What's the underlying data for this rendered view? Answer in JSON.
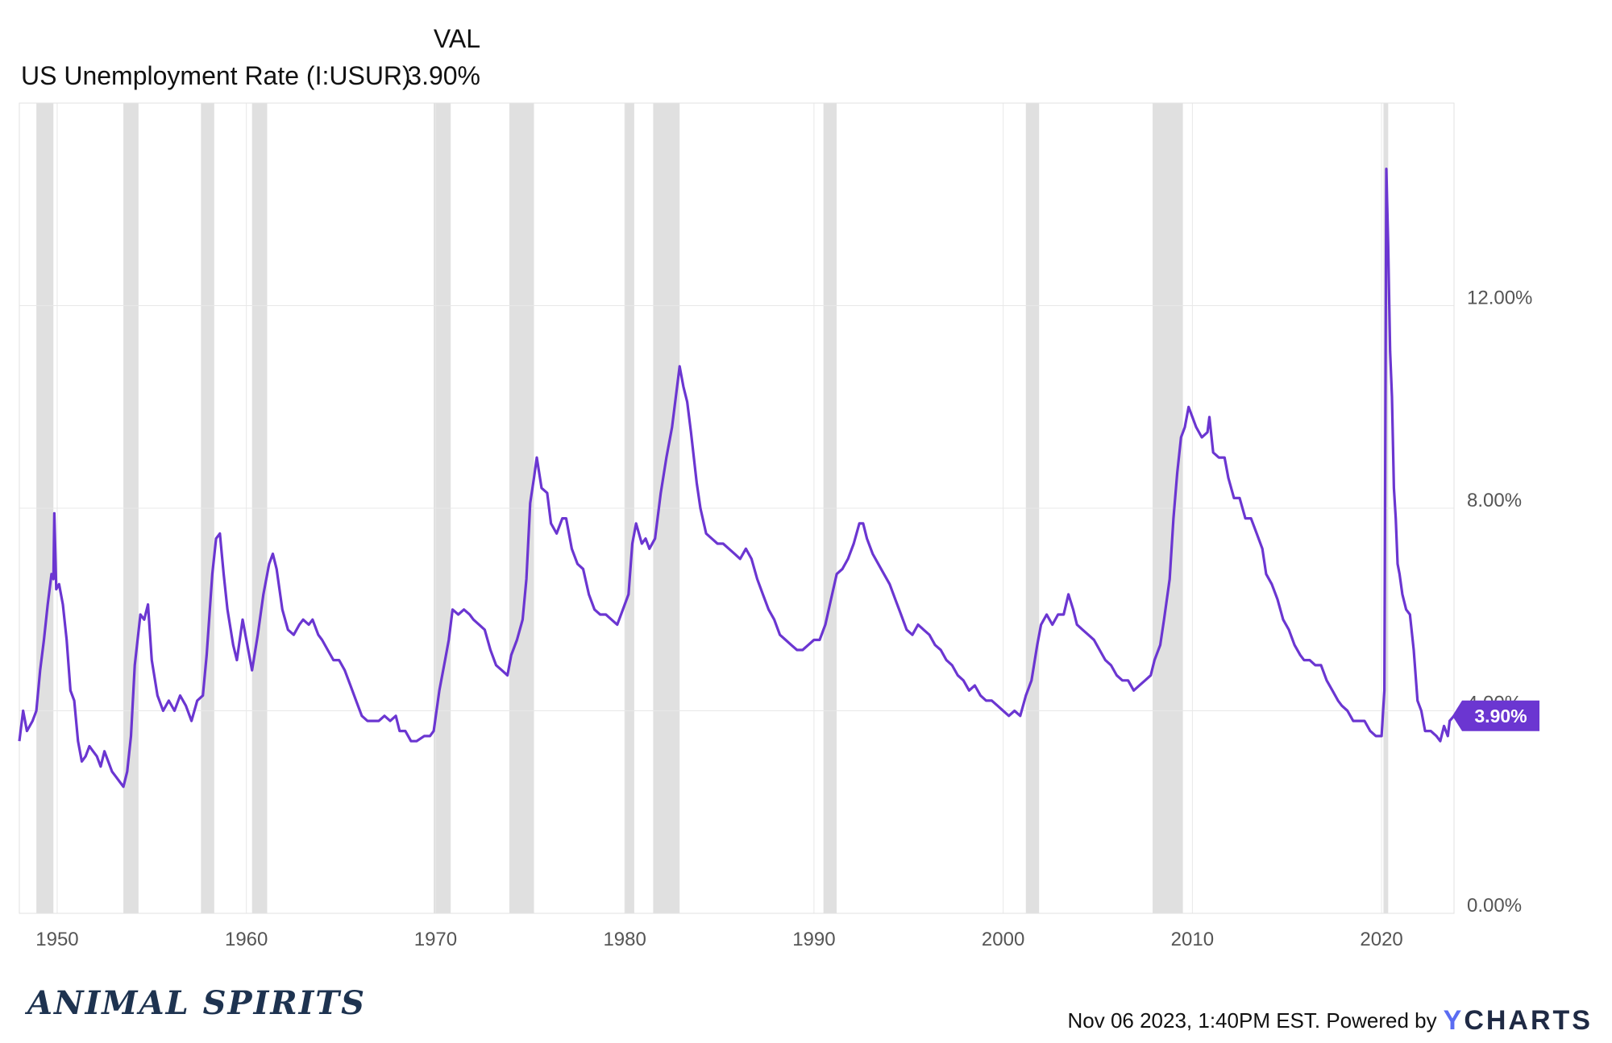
{
  "legend": {
    "header": "VAL",
    "series_name": "US Unemployment Rate (I:USUR)",
    "series_value": "3.90%"
  },
  "footer": {
    "logo_text": "ANIMAL SPIRITS",
    "timestamp": "Nov 06 2023, 1:40PM EST. Powered by",
    "brand_y": "Y",
    "brand_rest": "CHARTS"
  },
  "colors": {
    "line": "#6b36d1",
    "recession": "#e0e0e0",
    "grid": "#e8e8e8"
  },
  "chart_data": {
    "type": "line",
    "x_axis": {
      "min": 1948.0,
      "max": 2023.83,
      "ticks": [
        1950,
        1960,
        1970,
        1980,
        1990,
        2000,
        2010,
        2020
      ],
      "tick_labels": [
        "1950",
        "1960",
        "1970",
        "1980",
        "1990",
        "2000",
        "2010",
        "2020"
      ]
    },
    "y_axis": {
      "min": 0,
      "max": 16,
      "ticks": [
        0,
        4,
        8,
        12
      ],
      "tick_labels": [
        "0.00%",
        "4.00%",
        "8.00%",
        "12.00%"
      ],
      "side": "right"
    },
    "grid": true,
    "last_value_label": "3.90%",
    "recessions": [
      [
        1948.9,
        1949.8
      ],
      [
        1953.5,
        1954.3
      ],
      [
        1957.6,
        1958.3
      ],
      [
        1960.3,
        1961.1
      ],
      [
        1969.9,
        1970.8
      ],
      [
        1973.9,
        1975.2
      ],
      [
        1980.0,
        1980.5
      ],
      [
        1981.5,
        1982.9
      ],
      [
        1990.5,
        1991.2
      ],
      [
        2001.2,
        2001.9
      ],
      [
        2007.9,
        2009.5
      ],
      [
        2020.1,
        2020.35
      ]
    ],
    "series": [
      {
        "name": "US Unemployment Rate (I:USUR)",
        "points": [
          [
            1948.0,
            3.4
          ],
          [
            1948.2,
            4.0
          ],
          [
            1948.4,
            3.6
          ],
          [
            1948.7,
            3.8
          ],
          [
            1948.9,
            4.0
          ],
          [
            1949.1,
            4.8
          ],
          [
            1949.3,
            5.4
          ],
          [
            1949.5,
            6.1
          ],
          [
            1949.7,
            6.7
          ],
          [
            1949.8,
            6.6
          ],
          [
            1949.85,
            7.9
          ],
          [
            1949.95,
            6.4
          ],
          [
            1950.1,
            6.5
          ],
          [
            1950.3,
            6.1
          ],
          [
            1950.5,
            5.4
          ],
          [
            1950.7,
            4.4
          ],
          [
            1950.9,
            4.2
          ],
          [
            1951.1,
            3.4
          ],
          [
            1951.3,
            3.0
          ],
          [
            1951.5,
            3.1
          ],
          [
            1951.7,
            3.3
          ],
          [
            1951.9,
            3.2
          ],
          [
            1952.1,
            3.1
          ],
          [
            1952.3,
            2.9
          ],
          [
            1952.5,
            3.2
          ],
          [
            1952.7,
            3.0
          ],
          [
            1952.9,
            2.8
          ],
          [
            1953.1,
            2.7
          ],
          [
            1953.3,
            2.6
          ],
          [
            1953.5,
            2.5
          ],
          [
            1953.7,
            2.8
          ],
          [
            1953.9,
            3.5
          ],
          [
            1954.1,
            4.9
          ],
          [
            1954.4,
            5.9
          ],
          [
            1954.6,
            5.8
          ],
          [
            1954.8,
            6.1
          ],
          [
            1955.0,
            5.0
          ],
          [
            1955.3,
            4.3
          ],
          [
            1955.6,
            4.0
          ],
          [
            1955.9,
            4.2
          ],
          [
            1956.2,
            4.0
          ],
          [
            1956.5,
            4.3
          ],
          [
            1956.8,
            4.1
          ],
          [
            1957.1,
            3.8
          ],
          [
            1957.4,
            4.2
          ],
          [
            1957.7,
            4.3
          ],
          [
            1957.9,
            5.1
          ],
          [
            1958.2,
            6.7
          ],
          [
            1958.4,
            7.4
          ],
          [
            1958.6,
            7.5
          ],
          [
            1958.8,
            6.7
          ],
          [
            1959.0,
            6.0
          ],
          [
            1959.3,
            5.3
          ],
          [
            1959.5,
            5.0
          ],
          [
            1959.8,
            5.8
          ],
          [
            1960.1,
            5.2
          ],
          [
            1960.3,
            4.8
          ],
          [
            1960.6,
            5.5
          ],
          [
            1960.9,
            6.3
          ],
          [
            1961.2,
            6.9
          ],
          [
            1961.4,
            7.1
          ],
          [
            1961.6,
            6.8
          ],
          [
            1961.9,
            6.0
          ],
          [
            1962.2,
            5.6
          ],
          [
            1962.5,
            5.5
          ],
          [
            1962.8,
            5.7
          ],
          [
            1963.0,
            5.8
          ],
          [
            1963.3,
            5.7
          ],
          [
            1963.5,
            5.8
          ],
          [
            1963.8,
            5.5
          ],
          [
            1964.0,
            5.4
          ],
          [
            1964.3,
            5.2
          ],
          [
            1964.6,
            5.0
          ],
          [
            1964.9,
            5.0
          ],
          [
            1965.2,
            4.8
          ],
          [
            1965.5,
            4.5
          ],
          [
            1965.8,
            4.2
          ],
          [
            1966.1,
            3.9
          ],
          [
            1966.4,
            3.8
          ],
          [
            1966.7,
            3.8
          ],
          [
            1967.0,
            3.8
          ],
          [
            1967.3,
            3.9
          ],
          [
            1967.6,
            3.8
          ],
          [
            1967.9,
            3.9
          ],
          [
            1968.1,
            3.6
          ],
          [
            1968.4,
            3.6
          ],
          [
            1968.7,
            3.4
          ],
          [
            1969.0,
            3.4
          ],
          [
            1969.4,
            3.5
          ],
          [
            1969.7,
            3.5
          ],
          [
            1969.9,
            3.6
          ],
          [
            1970.2,
            4.4
          ],
          [
            1970.5,
            5.0
          ],
          [
            1970.7,
            5.4
          ],
          [
            1970.9,
            6.0
          ],
          [
            1971.2,
            5.9
          ],
          [
            1971.5,
            6.0
          ],
          [
            1971.8,
            5.9
          ],
          [
            1972.0,
            5.8
          ],
          [
            1972.3,
            5.7
          ],
          [
            1972.6,
            5.6
          ],
          [
            1972.9,
            5.2
          ],
          [
            1973.2,
            4.9
          ],
          [
            1973.5,
            4.8
          ],
          [
            1973.8,
            4.7
          ],
          [
            1974.0,
            5.1
          ],
          [
            1974.3,
            5.4
          ],
          [
            1974.6,
            5.8
          ],
          [
            1974.8,
            6.6
          ],
          [
            1975.0,
            8.1
          ],
          [
            1975.2,
            8.6
          ],
          [
            1975.35,
            9.0
          ],
          [
            1975.6,
            8.4
          ],
          [
            1975.9,
            8.3
          ],
          [
            1976.1,
            7.7
          ],
          [
            1976.4,
            7.5
          ],
          [
            1976.7,
            7.8
          ],
          [
            1976.9,
            7.8
          ],
          [
            1977.2,
            7.2
          ],
          [
            1977.5,
            6.9
          ],
          [
            1977.8,
            6.8
          ],
          [
            1978.1,
            6.3
          ],
          [
            1978.4,
            6.0
          ],
          [
            1978.7,
            5.9
          ],
          [
            1979.0,
            5.9
          ],
          [
            1979.3,
            5.8
          ],
          [
            1979.6,
            5.7
          ],
          [
            1979.9,
            6.0
          ],
          [
            1980.2,
            6.3
          ],
          [
            1980.4,
            7.3
          ],
          [
            1980.6,
            7.7
          ],
          [
            1980.9,
            7.3
          ],
          [
            1981.1,
            7.4
          ],
          [
            1981.3,
            7.2
          ],
          [
            1981.6,
            7.4
          ],
          [
            1981.9,
            8.3
          ],
          [
            1982.2,
            9.0
          ],
          [
            1982.5,
            9.6
          ],
          [
            1982.7,
            10.2
          ],
          [
            1982.9,
            10.8
          ],
          [
            1983.1,
            10.4
          ],
          [
            1983.3,
            10.1
          ],
          [
            1983.5,
            9.5
          ],
          [
            1983.8,
            8.5
          ],
          [
            1984.0,
            8.0
          ],
          [
            1984.3,
            7.5
          ],
          [
            1984.6,
            7.4
          ],
          [
            1984.9,
            7.3
          ],
          [
            1985.2,
            7.3
          ],
          [
            1985.5,
            7.2
          ],
          [
            1985.8,
            7.1
          ],
          [
            1986.1,
            7.0
          ],
          [
            1986.4,
            7.2
          ],
          [
            1986.7,
            7.0
          ],
          [
            1987.0,
            6.6
          ],
          [
            1987.3,
            6.3
          ],
          [
            1987.6,
            6.0
          ],
          [
            1987.9,
            5.8
          ],
          [
            1988.2,
            5.5
          ],
          [
            1988.5,
            5.4
          ],
          [
            1988.8,
            5.3
          ],
          [
            1989.1,
            5.2
          ],
          [
            1989.4,
            5.2
          ],
          [
            1989.7,
            5.3
          ],
          [
            1990.0,
            5.4
          ],
          [
            1990.3,
            5.4
          ],
          [
            1990.6,
            5.7
          ],
          [
            1990.9,
            6.2
          ],
          [
            1991.2,
            6.7
          ],
          [
            1991.5,
            6.8
          ],
          [
            1991.8,
            7.0
          ],
          [
            1992.1,
            7.3
          ],
          [
            1992.4,
            7.7
          ],
          [
            1992.6,
            7.7
          ],
          [
            1992.8,
            7.4
          ],
          [
            1993.1,
            7.1
          ],
          [
            1993.4,
            6.9
          ],
          [
            1993.7,
            6.7
          ],
          [
            1994.0,
            6.5
          ],
          [
            1994.3,
            6.2
          ],
          [
            1994.6,
            5.9
          ],
          [
            1994.9,
            5.6
          ],
          [
            1995.2,
            5.5
          ],
          [
            1995.5,
            5.7
          ],
          [
            1995.8,
            5.6
          ],
          [
            1996.1,
            5.5
          ],
          [
            1996.4,
            5.3
          ],
          [
            1996.7,
            5.2
          ],
          [
            1997.0,
            5.0
          ],
          [
            1997.3,
            4.9
          ],
          [
            1997.6,
            4.7
          ],
          [
            1997.9,
            4.6
          ],
          [
            1998.2,
            4.4
          ],
          [
            1998.5,
            4.5
          ],
          [
            1998.8,
            4.3
          ],
          [
            1999.1,
            4.2
          ],
          [
            1999.4,
            4.2
          ],
          [
            1999.7,
            4.1
          ],
          [
            2000.0,
            4.0
          ],
          [
            2000.3,
            3.9
          ],
          [
            2000.6,
            4.0
          ],
          [
            2000.9,
            3.9
          ],
          [
            2001.2,
            4.3
          ],
          [
            2001.5,
            4.6
          ],
          [
            2001.8,
            5.3
          ],
          [
            2002.0,
            5.7
          ],
          [
            2002.3,
            5.9
          ],
          [
            2002.6,
            5.7
          ],
          [
            2002.9,
            5.9
          ],
          [
            2003.2,
            5.9
          ],
          [
            2003.45,
            6.3
          ],
          [
            2003.7,
            6.0
          ],
          [
            2003.9,
            5.7
          ],
          [
            2004.2,
            5.6
          ],
          [
            2004.5,
            5.5
          ],
          [
            2004.8,
            5.4
          ],
          [
            2005.1,
            5.2
          ],
          [
            2005.4,
            5.0
          ],
          [
            2005.7,
            4.9
          ],
          [
            2006.0,
            4.7
          ],
          [
            2006.3,
            4.6
          ],
          [
            2006.6,
            4.6
          ],
          [
            2006.9,
            4.4
          ],
          [
            2007.2,
            4.5
          ],
          [
            2007.5,
            4.6
          ],
          [
            2007.8,
            4.7
          ],
          [
            2008.0,
            5.0
          ],
          [
            2008.3,
            5.3
          ],
          [
            2008.5,
            5.8
          ],
          [
            2008.8,
            6.6
          ],
          [
            2009.0,
            7.8
          ],
          [
            2009.2,
            8.7
          ],
          [
            2009.4,
            9.4
          ],
          [
            2009.6,
            9.6
          ],
          [
            2009.8,
            10.0
          ],
          [
            2010.0,
            9.8
          ],
          [
            2010.2,
            9.6
          ],
          [
            2010.5,
            9.4
          ],
          [
            2010.8,
            9.5
          ],
          [
            2010.9,
            9.8
          ],
          [
            2011.1,
            9.1
          ],
          [
            2011.4,
            9.0
          ],
          [
            2011.7,
            9.0
          ],
          [
            2011.9,
            8.6
          ],
          [
            2012.2,
            8.2
          ],
          [
            2012.5,
            8.2
          ],
          [
            2012.8,
            7.8
          ],
          [
            2013.1,
            7.8
          ],
          [
            2013.4,
            7.5
          ],
          [
            2013.7,
            7.2
          ],
          [
            2013.9,
            6.7
          ],
          [
            2014.2,
            6.5
          ],
          [
            2014.5,
            6.2
          ],
          [
            2014.8,
            5.8
          ],
          [
            2015.1,
            5.6
          ],
          [
            2015.4,
            5.3
          ],
          [
            2015.7,
            5.1
          ],
          [
            2015.9,
            5.0
          ],
          [
            2016.2,
            5.0
          ],
          [
            2016.5,
            4.9
          ],
          [
            2016.8,
            4.9
          ],
          [
            2017.1,
            4.6
          ],
          [
            2017.4,
            4.4
          ],
          [
            2017.7,
            4.2
          ],
          [
            2017.9,
            4.1
          ],
          [
            2018.2,
            4.0
          ],
          [
            2018.5,
            3.8
          ],
          [
            2018.8,
            3.8
          ],
          [
            2019.1,
            3.8
          ],
          [
            2019.4,
            3.6
          ],
          [
            2019.7,
            3.5
          ],
          [
            2020.0,
            3.5
          ],
          [
            2020.15,
            4.4
          ],
          [
            2020.25,
            14.7
          ],
          [
            2020.35,
            13.2
          ],
          [
            2020.45,
            11.1
          ],
          [
            2020.55,
            10.2
          ],
          [
            2020.65,
            8.4
          ],
          [
            2020.75,
            7.8
          ],
          [
            2020.85,
            6.9
          ],
          [
            2020.95,
            6.7
          ],
          [
            2021.1,
            6.3
          ],
          [
            2021.3,
            6.0
          ],
          [
            2021.5,
            5.9
          ],
          [
            2021.7,
            5.2
          ],
          [
            2021.9,
            4.2
          ],
          [
            2022.1,
            4.0
          ],
          [
            2022.3,
            3.6
          ],
          [
            2022.6,
            3.6
          ],
          [
            2022.9,
            3.5
          ],
          [
            2023.1,
            3.4
          ],
          [
            2023.3,
            3.7
          ],
          [
            2023.5,
            3.5
          ],
          [
            2023.6,
            3.8
          ],
          [
            2023.83,
            3.9
          ]
        ]
      }
    ]
  }
}
